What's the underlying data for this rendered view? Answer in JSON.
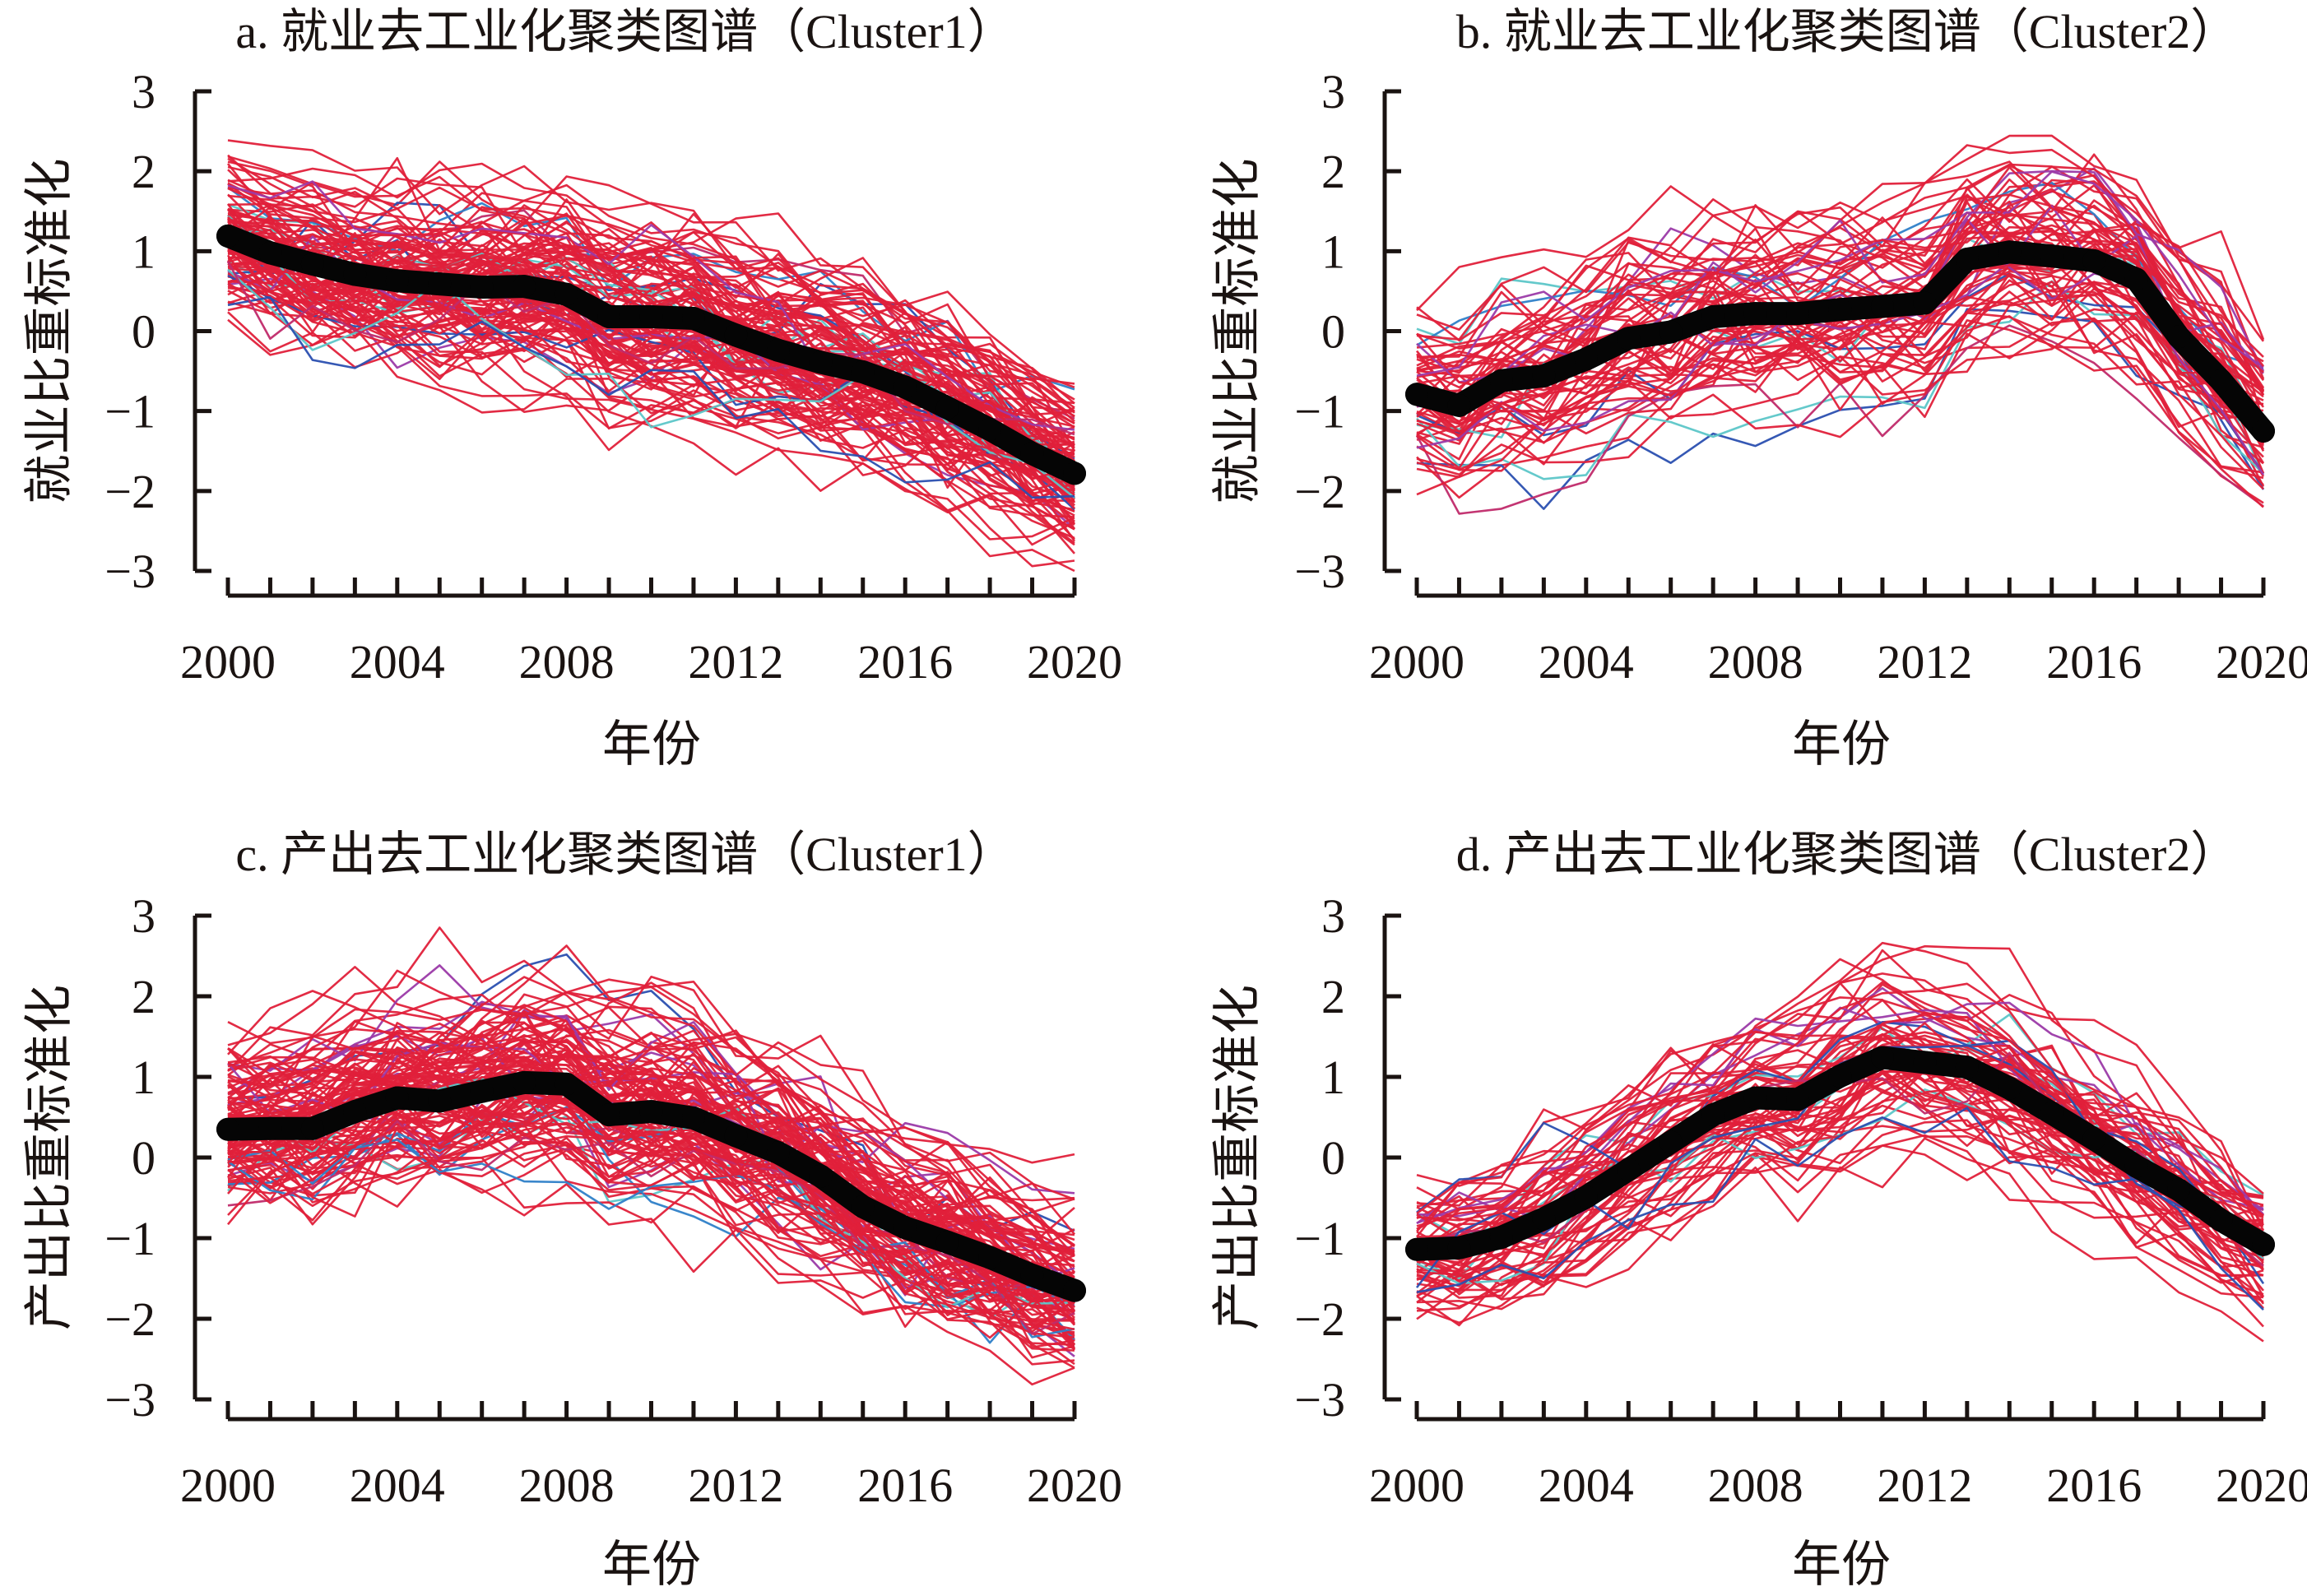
{
  "figure": {
    "x_label": "年份",
    "colors": {
      "member_primary": "#E0203A",
      "member_secondary": [
        "#C02A6A",
        "#9B3AA8",
        "#2A4FB0",
        "#2E7FC8",
        "#5CC6C8"
      ],
      "mean": "#050505",
      "axis": "#1A1311"
    }
  },
  "chart_data": [
    {
      "panel": "a",
      "type": "line",
      "title": "a. 就业去工业化聚类图谱（Cluster1）",
      "xlabel": "年份",
      "ylabel": "就业比重标准化",
      "x": [
        2000,
        2001,
        2002,
        2003,
        2004,
        2005,
        2006,
        2007,
        2008,
        2009,
        2010,
        2011,
        2012,
        2013,
        2014,
        2015,
        2016,
        2017,
        2018,
        2019,
        2020
      ],
      "x_ticks": [
        2000,
        2004,
        2008,
        2012,
        2016,
        2020
      ],
      "y_ticks": [
        3,
        2,
        1,
        0,
        -1,
        -2,
        -3
      ],
      "ylim": [
        -3,
        3
      ],
      "grid": false,
      "legend": "none",
      "series": [
        {
          "name": "Cluster1 centroid",
          "role": "mean",
          "values": [
            1.19,
            0.98,
            0.84,
            0.71,
            0.63,
            0.59,
            0.55,
            0.56,
            0.46,
            0.18,
            0.18,
            0.16,
            -0.05,
            -0.24,
            -0.39,
            -0.51,
            -0.7,
            -0.96,
            -1.23,
            -1.53,
            -1.78
          ]
        }
      ],
      "members": {
        "count": 120,
        "spread": 0.75
      }
    },
    {
      "panel": "b",
      "type": "line",
      "title": "b. 就业去工业化聚类图谱（Cluster2）",
      "xlabel": "年份",
      "ylabel": "就业比重标准化",
      "x": [
        2000,
        2001,
        2002,
        2003,
        2004,
        2005,
        2006,
        2007,
        2008,
        2009,
        2010,
        2011,
        2012,
        2013,
        2014,
        2015,
        2016,
        2017,
        2018,
        2019,
        2020
      ],
      "x_ticks": [
        2000,
        2004,
        2008,
        2012,
        2016,
        2020
      ],
      "y_ticks": [
        3,
        2,
        1,
        0,
        -1,
        -2,
        -3
      ],
      "ylim": [
        -3,
        3
      ],
      "grid": false,
      "legend": "none",
      "series": [
        {
          "name": "Cluster2 centroid",
          "role": "mean",
          "values": [
            -0.79,
            -0.93,
            -0.62,
            -0.56,
            -0.35,
            -0.09,
            -0.01,
            0.18,
            0.22,
            0.22,
            0.27,
            0.31,
            0.35,
            0.9,
            0.99,
            0.94,
            0.88,
            0.65,
            -0.07,
            -0.62,
            -1.25
          ]
        }
      ],
      "members": {
        "count": 70,
        "spread": 0.85
      }
    },
    {
      "panel": "c",
      "type": "line",
      "title": "c. 产出去工业化聚类图谱（Cluster1）",
      "xlabel": "年份",
      "ylabel": "产出比重标准化",
      "x": [
        2000,
        2001,
        2002,
        2003,
        2004,
        2005,
        2006,
        2007,
        2008,
        2009,
        2010,
        2011,
        2012,
        2013,
        2014,
        2015,
        2016,
        2017,
        2018,
        2019,
        2020
      ],
      "x_ticks": [
        2000,
        2004,
        2008,
        2012,
        2016,
        2020
      ],
      "y_ticks": [
        3,
        2,
        1,
        0,
        -1,
        -2,
        -3
      ],
      "ylim": [
        -3,
        3
      ],
      "grid": false,
      "legend": "none",
      "series": [
        {
          "name": "Cluster1 centroid",
          "role": "mean",
          "values": [
            0.35,
            0.36,
            0.36,
            0.57,
            0.74,
            0.7,
            0.82,
            0.93,
            0.91,
            0.53,
            0.57,
            0.49,
            0.27,
            0.06,
            -0.23,
            -0.61,
            -0.87,
            -1.05,
            -1.24,
            -1.46,
            -1.65
          ]
        }
      ],
      "members": {
        "count": 120,
        "spread": 0.8
      }
    },
    {
      "panel": "d",
      "type": "line",
      "title": "d. 产出去工业化聚类图谱（Cluster2）",
      "xlabel": "年份",
      "ylabel": "产出比重标准化",
      "x": [
        2000,
        2001,
        2002,
        2003,
        2004,
        2005,
        2006,
        2007,
        2008,
        2009,
        2010,
        2011,
        2012,
        2013,
        2014,
        2015,
        2016,
        2017,
        2018,
        2019,
        2020
      ],
      "x_ticks": [
        2000,
        2004,
        2008,
        2012,
        2016,
        2020
      ],
      "y_ticks": [
        3,
        2,
        1,
        0,
        -1,
        -2,
        -3
      ],
      "ylim": [
        -3,
        3
      ],
      "grid": false,
      "legend": "none",
      "series": [
        {
          "name": "Cluster2 centroid",
          "role": "mean",
          "values": [
            -1.14,
            -1.12,
            -0.99,
            -0.76,
            -0.49,
            -0.15,
            0.19,
            0.53,
            0.74,
            0.72,
            1.01,
            1.24,
            1.18,
            1.12,
            0.86,
            0.55,
            0.23,
            -0.11,
            -0.4,
            -0.78,
            -1.08
          ]
        }
      ],
      "members": {
        "count": 70,
        "spread": 0.7
      }
    }
  ]
}
